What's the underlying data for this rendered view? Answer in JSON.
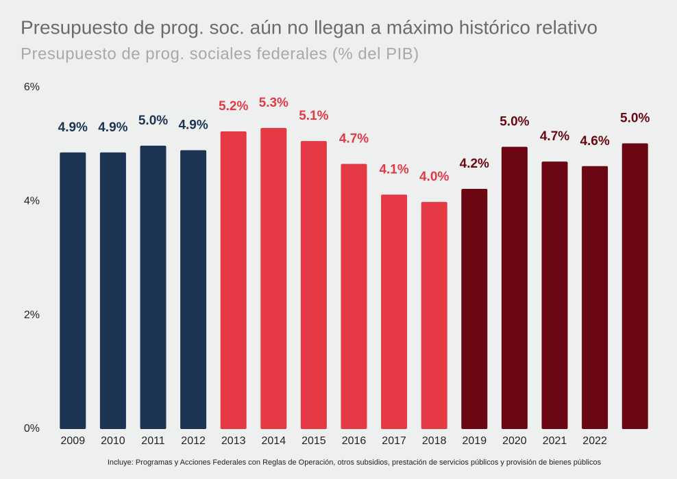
{
  "chart_data": {
    "type": "bar",
    "title": "Presupuesto de prog. soc. aún no llegan a máximo histórico relativo",
    "subtitle": "Presupuesto de prog. sociales federales (% del PIB)",
    "categories": [
      "2009",
      "2010",
      "2011",
      "2012",
      "2013",
      "2014",
      "2015",
      "2016",
      "2017",
      "2018",
      "2019",
      "2020",
      "2021",
      "2022",
      null
    ],
    "values": [
      4.86,
      4.86,
      4.98,
      4.9,
      5.23,
      5.29,
      5.06,
      4.66,
      4.12,
      3.99,
      4.22,
      4.96,
      4.7,
      4.62,
      5.02
    ],
    "value_labels": [
      "4.9%",
      "4.9%",
      "5.0%",
      "4.9%",
      "5.2%",
      "5.3%",
      "5.1%",
      "4.7%",
      "4.1%",
      "4.0%",
      "4.2%",
      "5.0%",
      "4.7%",
      "4.6%",
      "5.0%"
    ],
    "colors": [
      "#1c3353",
      "#1c3353",
      "#1c3353",
      "#1c3353",
      "#e63946",
      "#e63946",
      "#e63946",
      "#e63946",
      "#e63946",
      "#e63946",
      "#6a0712",
      "#6a0712",
      "#6a0712",
      "#6a0712",
      "#6a0712"
    ],
    "ylim": [
      0,
      6
    ],
    "yticks": [
      {
        "value": 0,
        "label": "0%"
      },
      {
        "value": 2,
        "label": "2%"
      },
      {
        "value": 4,
        "label": "4%"
      },
      {
        "value": 6,
        "label": "6%"
      }
    ],
    "grid": false,
    "note": "Incluye:  Programas y Acciones Federales con Reglas de Operación, otros subsidios, prestación de servicios públicos y provisión de bienes públicos"
  }
}
